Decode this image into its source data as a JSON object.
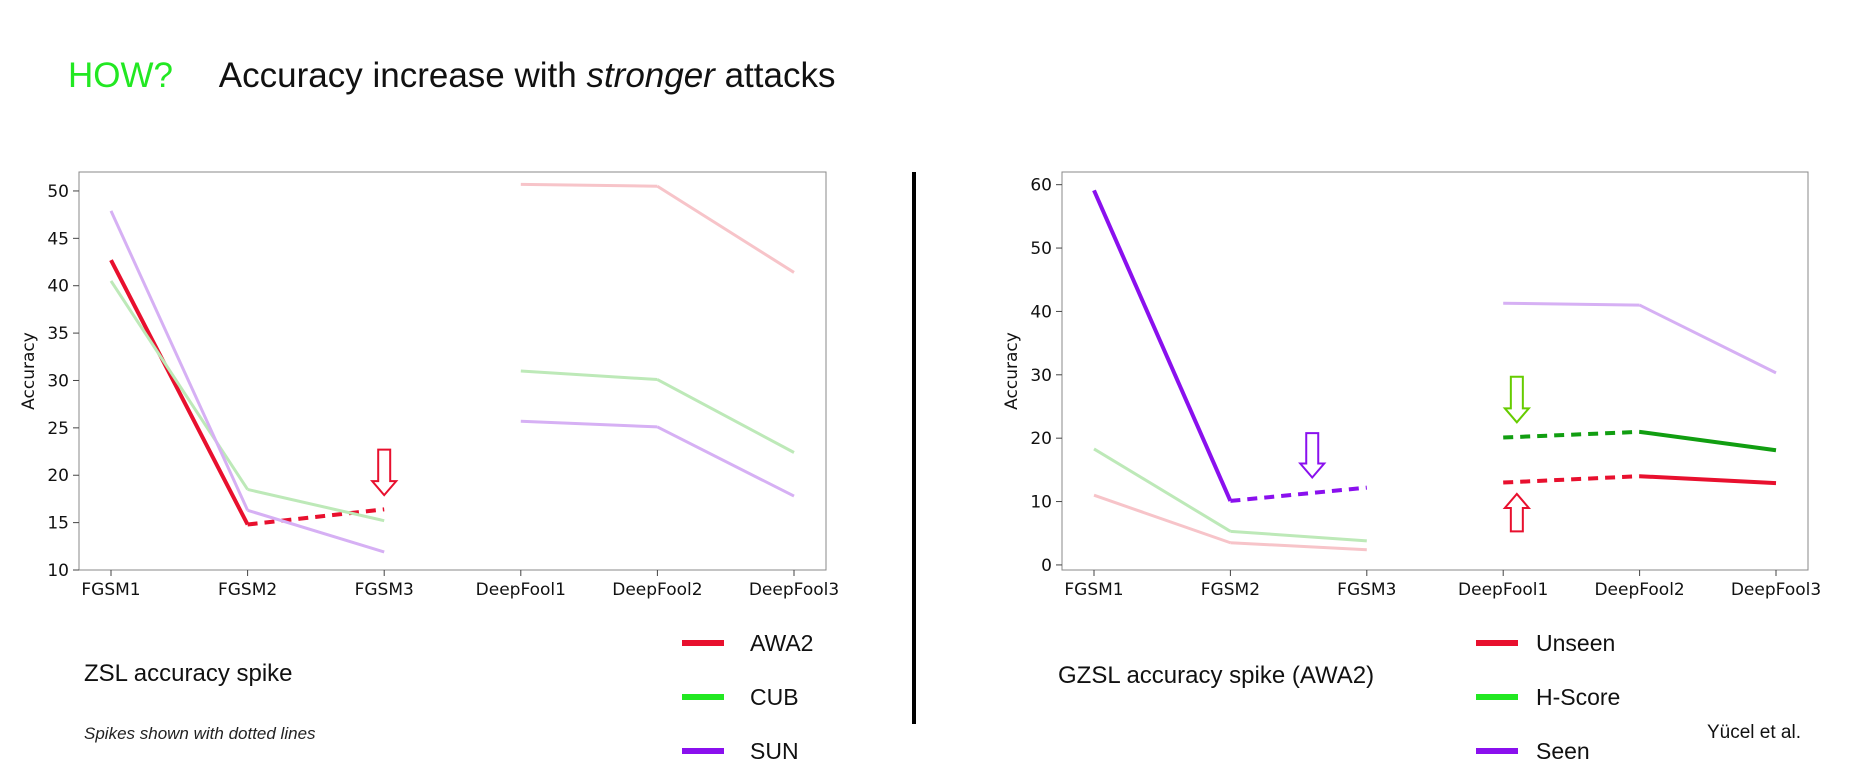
{
  "slide": {
    "how": "HOW?",
    "title_pre": "Accuracy increase with ",
    "title_em": "stronger",
    "title_post": " attacks",
    "credit": "Yücel et al."
  },
  "left": {
    "caption": "ZSL accuracy spike",
    "note": "Spikes shown with dotted lines",
    "legend": [
      {
        "label": "AWA2",
        "color": "#e8102e"
      },
      {
        "label": "CUB",
        "color": "#22e822"
      },
      {
        "label": "SUN",
        "color": "#8a10ee"
      }
    ]
  },
  "right": {
    "caption": "GZSL accuracy spike (AWA2)",
    "legend": [
      {
        "label": "Unseen",
        "color": "#e8102e"
      },
      {
        "label": "H-Score",
        "color": "#22e822"
      },
      {
        "label": "Seen",
        "color": "#8a10ee"
      }
    ]
  },
  "chart_data": [
    {
      "type": "line",
      "title": "ZSL accuracy spike",
      "xlabel": "",
      "ylabel": "Accuracy",
      "categories": [
        "FGSM1",
        "FGSM2",
        "FGSM3",
        "DeepFool1",
        "DeepFool2",
        "DeepFool3"
      ],
      "ylim": [
        10,
        52
      ],
      "yticks": [
        10,
        15,
        20,
        25,
        30,
        35,
        40,
        45,
        50
      ],
      "series": [
        {
          "name": "AWA2",
          "color": "#e8102e",
          "faded_color": "#f7c4c9",
          "values": [
            42.7,
            14.8,
            16.4,
            50.7,
            50.5,
            41.4
          ],
          "highlight": [
            0,
            1
          ],
          "spike": [
            1,
            2
          ]
        },
        {
          "name": "CUB",
          "color": "#22e822",
          "faded_color": "#bde9b8",
          "values": [
            40.5,
            18.5,
            15.2,
            31.0,
            30.1,
            22.4
          ],
          "highlight": [],
          "spike": []
        },
        {
          "name": "SUN",
          "color": "#8a10ee",
          "faded_color": "#d6b0f4",
          "values": [
            47.9,
            16.3,
            11.9,
            25.7,
            25.1,
            17.8
          ],
          "highlight": [],
          "spike": []
        }
      ],
      "annotations": [
        {
          "type": "arrow-down",
          "color": "#e8102e",
          "category": 2,
          "y_top": 22.7,
          "y_bottom": 17.9
        }
      ]
    },
    {
      "type": "line",
      "title": "GZSL accuracy spike (AWA2)",
      "xlabel": "",
      "ylabel": "Accuracy",
      "categories": [
        "FGSM1",
        "FGSM2",
        "FGSM3",
        "DeepFool1",
        "DeepFool2",
        "DeepFool3"
      ],
      "ylim": [
        -0.8,
        62
      ],
      "yticks": [
        0,
        10,
        20,
        30,
        40,
        50,
        60
      ],
      "series": [
        {
          "name": "Unseen",
          "color": "#e8102e",
          "faded_color": "#f7c4c9",
          "values": [
            11.0,
            3.5,
            2.4,
            13.0,
            14.0,
            12.9
          ],
          "highlight": [
            4,
            5
          ],
          "spike": [
            3,
            4
          ]
        },
        {
          "name": "H-Score",
          "color": "#119e11",
          "faded_color": "#bde9b8",
          "values": [
            18.3,
            5.3,
            3.8,
            20.1,
            21.0,
            18.1
          ],
          "highlight": [
            4,
            5
          ],
          "spike": [
            3,
            4
          ]
        },
        {
          "name": "Seen",
          "color": "#8a10ee",
          "faded_color": "#d6b0f4",
          "values": [
            59.1,
            10.1,
            12.2,
            41.3,
            41.0,
            30.3
          ],
          "highlight": [
            0,
            1
          ],
          "spike": [
            1,
            2
          ]
        }
      ],
      "annotations": [
        {
          "type": "arrow-down",
          "color": "#8a10ee",
          "category": 1.6,
          "y_top": 20.8,
          "y_bottom": 13.8
        },
        {
          "type": "arrow-down",
          "color": "#66cc00",
          "category": 3.1,
          "y_top": 29.7,
          "y_bottom": 22.5
        },
        {
          "type": "arrow-up",
          "color": "#e8102e",
          "category": 3.1,
          "y_top": 11.2,
          "y_bottom": 5.3
        }
      ]
    }
  ]
}
